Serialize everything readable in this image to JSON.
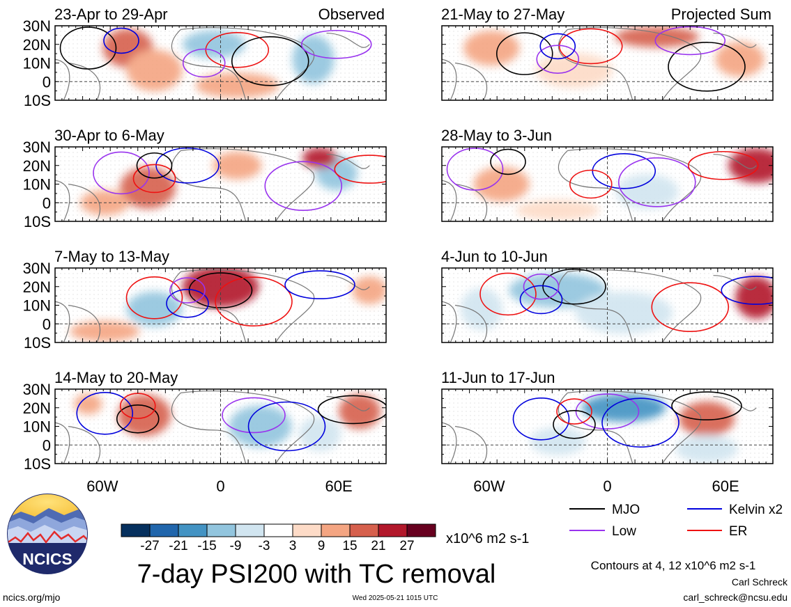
{
  "panels": [
    {
      "period": "23-Apr to 29-Apr",
      "tag": "Observed"
    },
    {
      "period": "30-Apr to 6-May",
      "tag": ""
    },
    {
      "period": "7-May to 13-May",
      "tag": ""
    },
    {
      "period": "14-May to 20-May",
      "tag": ""
    },
    {
      "period": "21-May to 27-May",
      "tag": "Projected Sum"
    },
    {
      "period": "28-May to 3-Jun",
      "tag": ""
    },
    {
      "period": "4-Jun to 10-Jun",
      "tag": ""
    },
    {
      "period": "11-Jun to 17-Jun",
      "tag": ""
    }
  ],
  "lat_labels": [
    "30N",
    "20N",
    "10N",
    "0",
    "10S"
  ],
  "lon_labels": [
    "60W",
    "0",
    "60E"
  ],
  "colorbar": {
    "ticks": [
      "-27",
      "-21",
      "-15",
      "-9",
      "-3",
      "3",
      "9",
      "15",
      "21",
      "27"
    ],
    "colors": [
      "#06305e",
      "#2166ac",
      "#4393c3",
      "#92c5de",
      "#d1e5f0",
      "#ffffff",
      "#fddbc7",
      "#f4a582",
      "#d6604d",
      "#b2182b",
      "#67001f"
    ],
    "units": "x10^6 m2 s-1"
  },
  "title": "7-day PSI200 with TC removal",
  "legend": {
    "items": [
      {
        "label": "MJO",
        "color": "#000000"
      },
      {
        "label": "Kelvin x2",
        "color": "#0000dd"
      },
      {
        "label": "Low",
        "color": "#9933ee"
      },
      {
        "label": "ER",
        "color": "#ee1111"
      }
    ],
    "contours_note": "Contours at 4, 12 x10^6 m2 s-1"
  },
  "logo_text": "NCICS",
  "footer": {
    "url": "ncics.org/mjo",
    "timestamp": "Wed 2025-05-21 1015 UTC",
    "author": "Carl Schreck",
    "email": "carl_schreck@ncsu.edu"
  }
}
